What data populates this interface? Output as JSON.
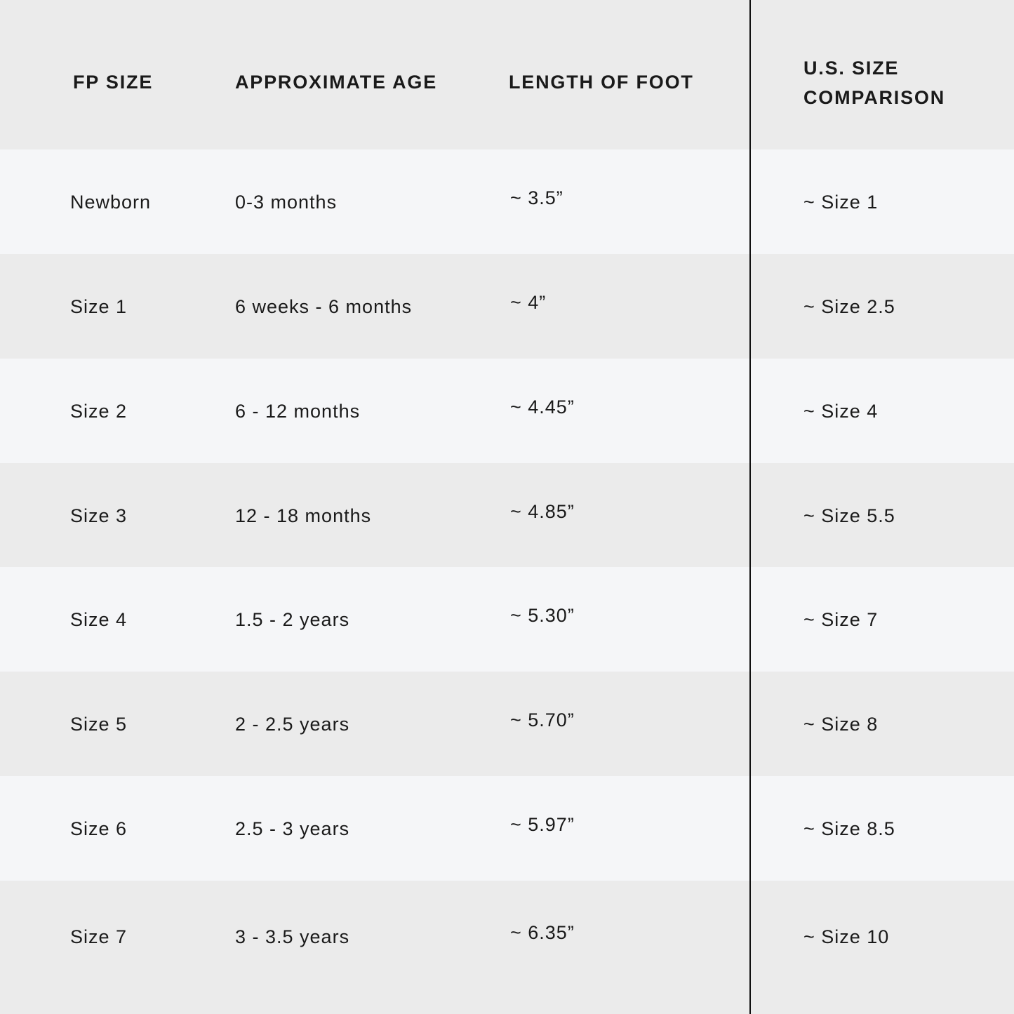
{
  "headers": [
    "FP SIZE",
    "APPROXIMATE AGE",
    "LENGTH OF FOOT",
    "U.S. SIZE",
    "COMPARISON"
  ],
  "colors": {
    "header_bg": "#ebebeb",
    "row_light": "#f5f6f8",
    "row_dark": "#ebebeb",
    "divider": "#111111"
  },
  "rows": [
    {
      "fp_size": "Newborn",
      "age": "0-3 months",
      "length": "~ 3.5”",
      "us_size": "~ Size 1"
    },
    {
      "fp_size": "Size 1",
      "age": "6 weeks - 6 months",
      "length": "~ 4”",
      "us_size": "~ Size 2.5"
    },
    {
      "fp_size": "Size 2",
      "age": "6 - 12 months",
      "length": "~ 4.45”",
      "us_size": "~ Size 4"
    },
    {
      "fp_size": "Size 3",
      "age": "12 - 18 months",
      "length": "~ 4.85”",
      "us_size": "~ Size 5.5"
    },
    {
      "fp_size": "Size 4",
      "age": "1.5 - 2 years",
      "length": "~ 5.30”",
      "us_size": "~ Size 7"
    },
    {
      "fp_size": "Size 5",
      "age": "2 - 2.5 years",
      "length": "~ 5.70”",
      "us_size": "~ Size 8"
    },
    {
      "fp_size": "Size 6",
      "age": "2.5 - 3 years",
      "length": "~ 5.97”",
      "us_size": "~ Size 8.5"
    },
    {
      "fp_size": "Size 7",
      "age": "3 - 3.5 years",
      "length": "~ 6.35”",
      "us_size": "~ Size 10"
    }
  ]
}
